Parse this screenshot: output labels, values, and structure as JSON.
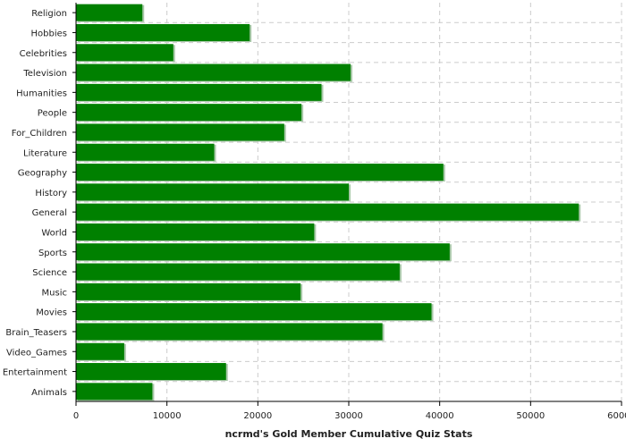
{
  "chart_data": {
    "type": "bar",
    "orientation": "horizontal",
    "title": "",
    "xlabel": "ncrmd's Gold Member Cumulative Quiz Stats",
    "ylabel": "",
    "xlim": [
      0,
      60000
    ],
    "xticks": [
      "0",
      "10000",
      "20000",
      "30000",
      "40000",
      "50000",
      "60000"
    ],
    "grid": true,
    "bar_color": "#008000",
    "categories": [
      "Religion",
      "Hobbies",
      "Celebrities",
      "Television",
      "Humanities",
      "People",
      "For_Children",
      "Literature",
      "Geography",
      "History",
      "General",
      "World",
      "Sports",
      "Science",
      "Music",
      "Movies",
      "Brain_Teasers",
      "Video_Games",
      "Entertainment",
      "Animals"
    ],
    "values": [
      7300,
      19100,
      10700,
      30200,
      27000,
      24800,
      22900,
      15200,
      40400,
      30000,
      55300,
      26200,
      41100,
      35600,
      24700,
      39100,
      33700,
      5300,
      16500,
      8400
    ]
  }
}
